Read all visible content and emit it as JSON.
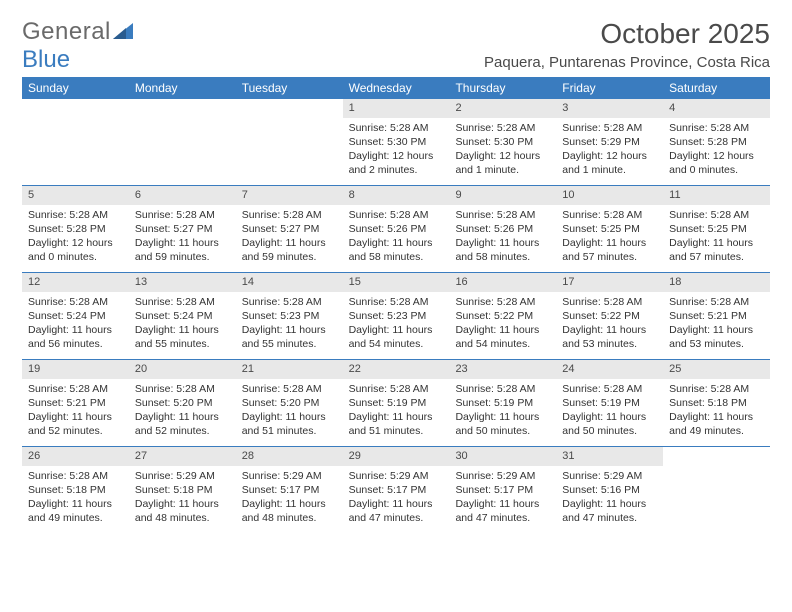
{
  "brand": {
    "part1": "General",
    "part2": "Blue"
  },
  "title": "October 2025",
  "location": "Paquera, Puntarenas Province, Costa Rica",
  "colors": {
    "header_bg": "#3a7cbf",
    "daynum_bg": "#e8e8e8",
    "row_border": "#3a7cbf",
    "text": "#333333",
    "title_text": "#4a4a4a",
    "page_bg": "#ffffff"
  },
  "day_headers": [
    "Sunday",
    "Monday",
    "Tuesday",
    "Wednesday",
    "Thursday",
    "Friday",
    "Saturday"
  ],
  "weeks": [
    [
      {
        "n": "",
        "sr": "",
        "ss": "",
        "dl": ""
      },
      {
        "n": "",
        "sr": "",
        "ss": "",
        "dl": ""
      },
      {
        "n": "",
        "sr": "",
        "ss": "",
        "dl": ""
      },
      {
        "n": "1",
        "sr": "Sunrise: 5:28 AM",
        "ss": "Sunset: 5:30 PM",
        "dl": "Daylight: 12 hours and 2 minutes."
      },
      {
        "n": "2",
        "sr": "Sunrise: 5:28 AM",
        "ss": "Sunset: 5:30 PM",
        "dl": "Daylight: 12 hours and 1 minute."
      },
      {
        "n": "3",
        "sr": "Sunrise: 5:28 AM",
        "ss": "Sunset: 5:29 PM",
        "dl": "Daylight: 12 hours and 1 minute."
      },
      {
        "n": "4",
        "sr": "Sunrise: 5:28 AM",
        "ss": "Sunset: 5:28 PM",
        "dl": "Daylight: 12 hours and 0 minutes."
      }
    ],
    [
      {
        "n": "5",
        "sr": "Sunrise: 5:28 AM",
        "ss": "Sunset: 5:28 PM",
        "dl": "Daylight: 12 hours and 0 minutes."
      },
      {
        "n": "6",
        "sr": "Sunrise: 5:28 AM",
        "ss": "Sunset: 5:27 PM",
        "dl": "Daylight: 11 hours and 59 minutes."
      },
      {
        "n": "7",
        "sr": "Sunrise: 5:28 AM",
        "ss": "Sunset: 5:27 PM",
        "dl": "Daylight: 11 hours and 59 minutes."
      },
      {
        "n": "8",
        "sr": "Sunrise: 5:28 AM",
        "ss": "Sunset: 5:26 PM",
        "dl": "Daylight: 11 hours and 58 minutes."
      },
      {
        "n": "9",
        "sr": "Sunrise: 5:28 AM",
        "ss": "Sunset: 5:26 PM",
        "dl": "Daylight: 11 hours and 58 minutes."
      },
      {
        "n": "10",
        "sr": "Sunrise: 5:28 AM",
        "ss": "Sunset: 5:25 PM",
        "dl": "Daylight: 11 hours and 57 minutes."
      },
      {
        "n": "11",
        "sr": "Sunrise: 5:28 AM",
        "ss": "Sunset: 5:25 PM",
        "dl": "Daylight: 11 hours and 57 minutes."
      }
    ],
    [
      {
        "n": "12",
        "sr": "Sunrise: 5:28 AM",
        "ss": "Sunset: 5:24 PM",
        "dl": "Daylight: 11 hours and 56 minutes."
      },
      {
        "n": "13",
        "sr": "Sunrise: 5:28 AM",
        "ss": "Sunset: 5:24 PM",
        "dl": "Daylight: 11 hours and 55 minutes."
      },
      {
        "n": "14",
        "sr": "Sunrise: 5:28 AM",
        "ss": "Sunset: 5:23 PM",
        "dl": "Daylight: 11 hours and 55 minutes."
      },
      {
        "n": "15",
        "sr": "Sunrise: 5:28 AM",
        "ss": "Sunset: 5:23 PM",
        "dl": "Daylight: 11 hours and 54 minutes."
      },
      {
        "n": "16",
        "sr": "Sunrise: 5:28 AM",
        "ss": "Sunset: 5:22 PM",
        "dl": "Daylight: 11 hours and 54 minutes."
      },
      {
        "n": "17",
        "sr": "Sunrise: 5:28 AM",
        "ss": "Sunset: 5:22 PM",
        "dl": "Daylight: 11 hours and 53 minutes."
      },
      {
        "n": "18",
        "sr": "Sunrise: 5:28 AM",
        "ss": "Sunset: 5:21 PM",
        "dl": "Daylight: 11 hours and 53 minutes."
      }
    ],
    [
      {
        "n": "19",
        "sr": "Sunrise: 5:28 AM",
        "ss": "Sunset: 5:21 PM",
        "dl": "Daylight: 11 hours and 52 minutes."
      },
      {
        "n": "20",
        "sr": "Sunrise: 5:28 AM",
        "ss": "Sunset: 5:20 PM",
        "dl": "Daylight: 11 hours and 52 minutes."
      },
      {
        "n": "21",
        "sr": "Sunrise: 5:28 AM",
        "ss": "Sunset: 5:20 PM",
        "dl": "Daylight: 11 hours and 51 minutes."
      },
      {
        "n": "22",
        "sr": "Sunrise: 5:28 AM",
        "ss": "Sunset: 5:19 PM",
        "dl": "Daylight: 11 hours and 51 minutes."
      },
      {
        "n": "23",
        "sr": "Sunrise: 5:28 AM",
        "ss": "Sunset: 5:19 PM",
        "dl": "Daylight: 11 hours and 50 minutes."
      },
      {
        "n": "24",
        "sr": "Sunrise: 5:28 AM",
        "ss": "Sunset: 5:19 PM",
        "dl": "Daylight: 11 hours and 50 minutes."
      },
      {
        "n": "25",
        "sr": "Sunrise: 5:28 AM",
        "ss": "Sunset: 5:18 PM",
        "dl": "Daylight: 11 hours and 49 minutes."
      }
    ],
    [
      {
        "n": "26",
        "sr": "Sunrise: 5:28 AM",
        "ss": "Sunset: 5:18 PM",
        "dl": "Daylight: 11 hours and 49 minutes."
      },
      {
        "n": "27",
        "sr": "Sunrise: 5:29 AM",
        "ss": "Sunset: 5:18 PM",
        "dl": "Daylight: 11 hours and 48 minutes."
      },
      {
        "n": "28",
        "sr": "Sunrise: 5:29 AM",
        "ss": "Sunset: 5:17 PM",
        "dl": "Daylight: 11 hours and 48 minutes."
      },
      {
        "n": "29",
        "sr": "Sunrise: 5:29 AM",
        "ss": "Sunset: 5:17 PM",
        "dl": "Daylight: 11 hours and 47 minutes."
      },
      {
        "n": "30",
        "sr": "Sunrise: 5:29 AM",
        "ss": "Sunset: 5:17 PM",
        "dl": "Daylight: 11 hours and 47 minutes."
      },
      {
        "n": "31",
        "sr": "Sunrise: 5:29 AM",
        "ss": "Sunset: 5:16 PM",
        "dl": "Daylight: 11 hours and 47 minutes."
      },
      {
        "n": "",
        "sr": "",
        "ss": "",
        "dl": ""
      }
    ]
  ]
}
